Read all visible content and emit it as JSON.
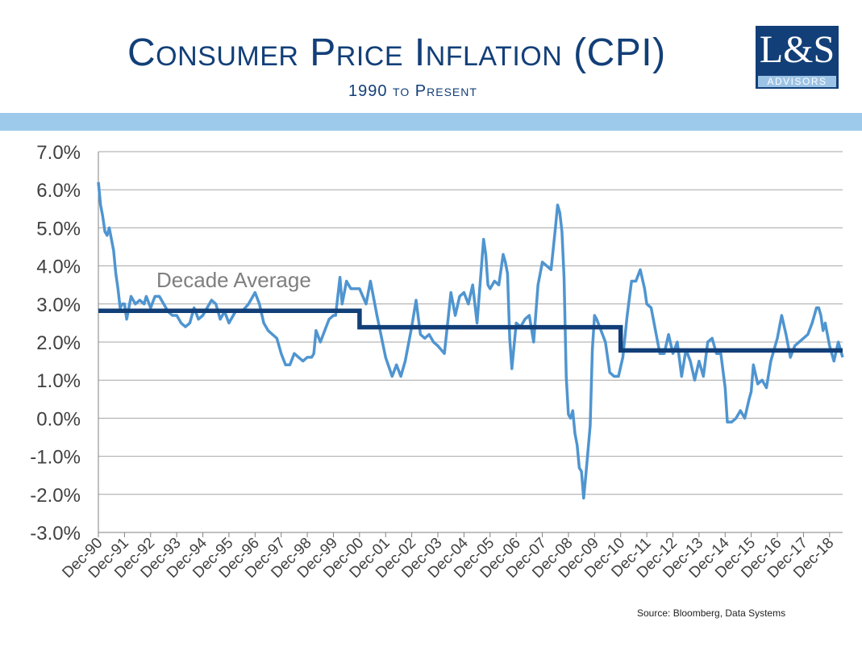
{
  "header": {
    "title": "Consumer Price Inflation (CPI)",
    "subtitle": "1990 to Present",
    "logo_main": "L&S",
    "logo_sub": "ADVISORS"
  },
  "source": "Source:  Bloomberg, Data Systems",
  "colors": {
    "title": "#123f78",
    "band": "#9dcaeb",
    "cpi_line": "#4f95d0",
    "average_line": "#123f78",
    "grid": "#a6a6a6"
  },
  "chart_data": {
    "type": "line",
    "title": "Consumer Price Inflation (CPI)",
    "subtitle": "1990 to Present",
    "x_unit": "month",
    "x_range": [
      "Dec-90",
      "Jun-19"
    ],
    "ylim": [
      -3.0,
      7.0
    ],
    "yticks": [
      "7.0%",
      "6.0%",
      "5.0%",
      "4.0%",
      "3.0%",
      "2.0%",
      "1.0%",
      "0.0%",
      "-1.0%",
      "-2.0%",
      "-3.0%"
    ],
    "xticks": [
      "Dec-90",
      "Dec-91",
      "Dec-92",
      "Dec-93",
      "Dec-94",
      "Dec-95",
      "Dec-96",
      "Dec-97",
      "Dec-98",
      "Dec-99",
      "Dec-00",
      "Dec-01",
      "Dec-02",
      "Dec-03",
      "Dec-04",
      "Dec-05",
      "Dec-06",
      "Dec-07",
      "Dec-08",
      "Dec-09",
      "Dec-10",
      "Dec-11",
      "Dec-12",
      "Dec-13",
      "Dec-14",
      "Dec-15",
      "Dec-16",
      "Dec-17",
      "Dec-18"
    ],
    "grid": "horizontal",
    "annotation": "Decade Average",
    "series": [
      {
        "name": "CPI",
        "points": [
          [
            "Dec-90",
            6.2
          ],
          [
            "Jan-91",
            5.6
          ],
          [
            "Feb-91",
            5.3
          ],
          [
            "Mar-91",
            4.9
          ],
          [
            "Apr-91",
            4.8
          ],
          [
            "May-91",
            5.0
          ],
          [
            "Jun-91",
            4.7
          ],
          [
            "Jul-91",
            4.4
          ],
          [
            "Aug-91",
            3.8
          ],
          [
            "Sep-91",
            3.4
          ],
          [
            "Oct-91",
            2.9
          ],
          [
            "Nov-91",
            3.0
          ],
          [
            "Dec-91",
            3.0
          ],
          [
            "Jan-92",
            2.6
          ],
          [
            "Mar-92",
            3.2
          ],
          [
            "May-92",
            3.0
          ],
          [
            "Jul-92",
            3.1
          ],
          [
            "Sep-92",
            3.0
          ],
          [
            "Oct-92",
            3.2
          ],
          [
            "Dec-92",
            2.9
          ],
          [
            "Feb-93",
            3.2
          ],
          [
            "Apr-93",
            3.2
          ],
          [
            "Jun-93",
            3.0
          ],
          [
            "Aug-93",
            2.8
          ],
          [
            "Oct-93",
            2.7
          ],
          [
            "Dec-93",
            2.7
          ],
          [
            "Feb-94",
            2.5
          ],
          [
            "Apr-94",
            2.4
          ],
          [
            "Jun-94",
            2.5
          ],
          [
            "Aug-94",
            2.9
          ],
          [
            "Oct-94",
            2.6
          ],
          [
            "Dec-94",
            2.7
          ],
          [
            "Feb-95",
            2.9
          ],
          [
            "Apr-95",
            3.1
          ],
          [
            "Jun-95",
            3.0
          ],
          [
            "Aug-95",
            2.6
          ],
          [
            "Oct-95",
            2.8
          ],
          [
            "Dec-95",
            2.5
          ],
          [
            "Mar-96",
            2.8
          ],
          [
            "Jun-96",
            2.8
          ],
          [
            "Sep-96",
            3.0
          ],
          [
            "Dec-96",
            3.3
          ],
          [
            "Feb-97",
            3.0
          ],
          [
            "Apr-97",
            2.5
          ],
          [
            "Jun-97",
            2.3
          ],
          [
            "Aug-97",
            2.2
          ],
          [
            "Oct-97",
            2.1
          ],
          [
            "Dec-97",
            1.7
          ],
          [
            "Feb-98",
            1.4
          ],
          [
            "Apr-98",
            1.4
          ],
          [
            "Jun-98",
            1.7
          ],
          [
            "Aug-98",
            1.6
          ],
          [
            "Oct-98",
            1.5
          ],
          [
            "Dec-98",
            1.6
          ],
          [
            "Feb-99",
            1.6
          ],
          [
            "Mar-99",
            1.7
          ],
          [
            "Apr-99",
            2.3
          ],
          [
            "Jun-99",
            2.0
          ],
          [
            "Aug-99",
            2.3
          ],
          [
            "Oct-99",
            2.6
          ],
          [
            "Dec-99",
            2.7
          ],
          [
            "Jan-00",
            2.7
          ],
          [
            "Mar-00",
            3.7
          ],
          [
            "Apr-00",
            3.0
          ],
          [
            "Jun-00",
            3.6
          ],
          [
            "Aug-00",
            3.4
          ],
          [
            "Oct-00",
            3.4
          ],
          [
            "Dec-00",
            3.4
          ],
          [
            "Mar-01",
            3.0
          ],
          [
            "May-01",
            3.6
          ],
          [
            "Aug-01",
            2.7
          ],
          [
            "Dec-01",
            1.6
          ],
          [
            "Mar-02",
            1.1
          ],
          [
            "May-02",
            1.4
          ],
          [
            "Jul-02",
            1.1
          ],
          [
            "Sep-02",
            1.5
          ],
          [
            "Dec-02",
            2.4
          ],
          [
            "Feb-03",
            3.1
          ],
          [
            "Apr-03",
            2.2
          ],
          [
            "Jun-03",
            2.1
          ],
          [
            "Aug-03",
            2.2
          ],
          [
            "Oct-03",
            2.0
          ],
          [
            "Dec-03",
            1.9
          ],
          [
            "Mar-04",
            1.7
          ],
          [
            "Jun-04",
            3.3
          ],
          [
            "Aug-04",
            2.7
          ],
          [
            "Oct-04",
            3.2
          ],
          [
            "Dec-04",
            3.3
          ],
          [
            "Feb-05",
            3.0
          ],
          [
            "Apr-05",
            3.5
          ],
          [
            "Jun-05",
            2.5
          ],
          [
            "Sep-05",
            4.7
          ],
          [
            "Oct-05",
            4.3
          ],
          [
            "Nov-05",
            3.5
          ],
          [
            "Dec-05",
            3.4
          ],
          [
            "Feb-06",
            3.6
          ],
          [
            "Apr-06",
            3.5
          ],
          [
            "Jun-06",
            4.3
          ],
          [
            "Jul-06",
            4.1
          ],
          [
            "Aug-06",
            3.8
          ],
          [
            "Sep-06",
            2.1
          ],
          [
            "Oct-06",
            1.3
          ],
          [
            "Dec-06",
            2.5
          ],
          [
            "Feb-07",
            2.4
          ],
          [
            "Apr-07",
            2.6
          ],
          [
            "Jun-07",
            2.7
          ],
          [
            "Aug-07",
            2.0
          ],
          [
            "Oct-07",
            3.5
          ],
          [
            "Dec-07",
            4.1
          ],
          [
            "Feb-08",
            4.0
          ],
          [
            "Apr-08",
            3.9
          ],
          [
            "Jun-08",
            5.0
          ],
          [
            "Jul-08",
            5.6
          ],
          [
            "Aug-08",
            5.4
          ],
          [
            "Sep-08",
            4.9
          ],
          [
            "Oct-08",
            3.7
          ],
          [
            "Nov-08",
            1.1
          ],
          [
            "Dec-08",
            0.1
          ],
          [
            "Jan-09",
            0.0
          ],
          [
            "Feb-09",
            0.2
          ],
          [
            "Mar-09",
            -0.4
          ],
          [
            "Apr-09",
            -0.7
          ],
          [
            "May-09",
            -1.3
          ],
          [
            "Jun-09",
            -1.4
          ],
          [
            "Jul-09",
            -2.1
          ],
          [
            "Aug-09",
            -1.5
          ],
          [
            "Oct-09",
            -0.2
          ],
          [
            "Nov-09",
            1.8
          ],
          [
            "Dec-09",
            2.7
          ],
          [
            "Jan-10",
            2.6
          ],
          [
            "Mar-10",
            2.3
          ],
          [
            "May-10",
            2.0
          ],
          [
            "Jul-10",
            1.2
          ],
          [
            "Sep-10",
            1.1
          ],
          [
            "Nov-10",
            1.1
          ],
          [
            "Jan-11",
            1.6
          ],
          [
            "Mar-11",
            2.7
          ],
          [
            "May-11",
            3.6
          ],
          [
            "Jul-11",
            3.6
          ],
          [
            "Sep-11",
            3.9
          ],
          [
            "Nov-11",
            3.4
          ],
          [
            "Dec-11",
            3.0
          ],
          [
            "Feb-12",
            2.9
          ],
          [
            "Apr-12",
            2.3
          ],
          [
            "Jun-12",
            1.7
          ],
          [
            "Aug-12",
            1.7
          ],
          [
            "Oct-12",
            2.2
          ],
          [
            "Dec-12",
            1.7
          ],
          [
            "Feb-13",
            2.0
          ],
          [
            "Apr-13",
            1.1
          ],
          [
            "Jun-13",
            1.8
          ],
          [
            "Aug-13",
            1.5
          ],
          [
            "Oct-13",
            1.0
          ],
          [
            "Dec-13",
            1.5
          ],
          [
            "Feb-14",
            1.1
          ],
          [
            "Apr-14",
            2.0
          ],
          [
            "Jun-14",
            2.1
          ],
          [
            "Aug-14",
            1.7
          ],
          [
            "Oct-14",
            1.7
          ],
          [
            "Dec-14",
            0.8
          ],
          [
            "Jan-15",
            -0.1
          ],
          [
            "Mar-15",
            -0.1
          ],
          [
            "May-15",
            0.0
          ],
          [
            "Jul-15",
            0.2
          ],
          [
            "Sep-15",
            0.0
          ],
          [
            "Nov-15",
            0.5
          ],
          [
            "Dec-15",
            0.7
          ],
          [
            "Jan-16",
            1.4
          ],
          [
            "Mar-16",
            0.9
          ],
          [
            "May-16",
            1.0
          ],
          [
            "Jul-16",
            0.8
          ],
          [
            "Sep-16",
            1.5
          ],
          [
            "Dec-16",
            2.1
          ],
          [
            "Feb-17",
            2.7
          ],
          [
            "Apr-17",
            2.2
          ],
          [
            "Jun-17",
            1.6
          ],
          [
            "Aug-17",
            1.9
          ],
          [
            "Oct-17",
            2.0
          ],
          [
            "Dec-17",
            2.1
          ],
          [
            "Feb-18",
            2.2
          ],
          [
            "Apr-18",
            2.5
          ],
          [
            "Jun-18",
            2.9
          ],
          [
            "Jul-18",
            2.9
          ],
          [
            "Aug-18",
            2.7
          ],
          [
            "Sep-18",
            2.3
          ],
          [
            "Oct-18",
            2.5
          ],
          [
            "Nov-18",
            2.2
          ],
          [
            "Dec-18",
            1.9
          ],
          [
            "Feb-19",
            1.5
          ],
          [
            "Apr-19",
            2.0
          ],
          [
            "Jun-19",
            1.6
          ]
        ]
      },
      {
        "name": "Decade Average",
        "segments": [
          {
            "from": "Dec-90",
            "to": "Dec-00",
            "value": 2.82
          },
          {
            "from": "Dec-00",
            "to": "Dec-10",
            "value": 2.39
          },
          {
            "from": "Dec-10",
            "to": "Jun-19",
            "value": 1.78
          }
        ]
      }
    ]
  }
}
